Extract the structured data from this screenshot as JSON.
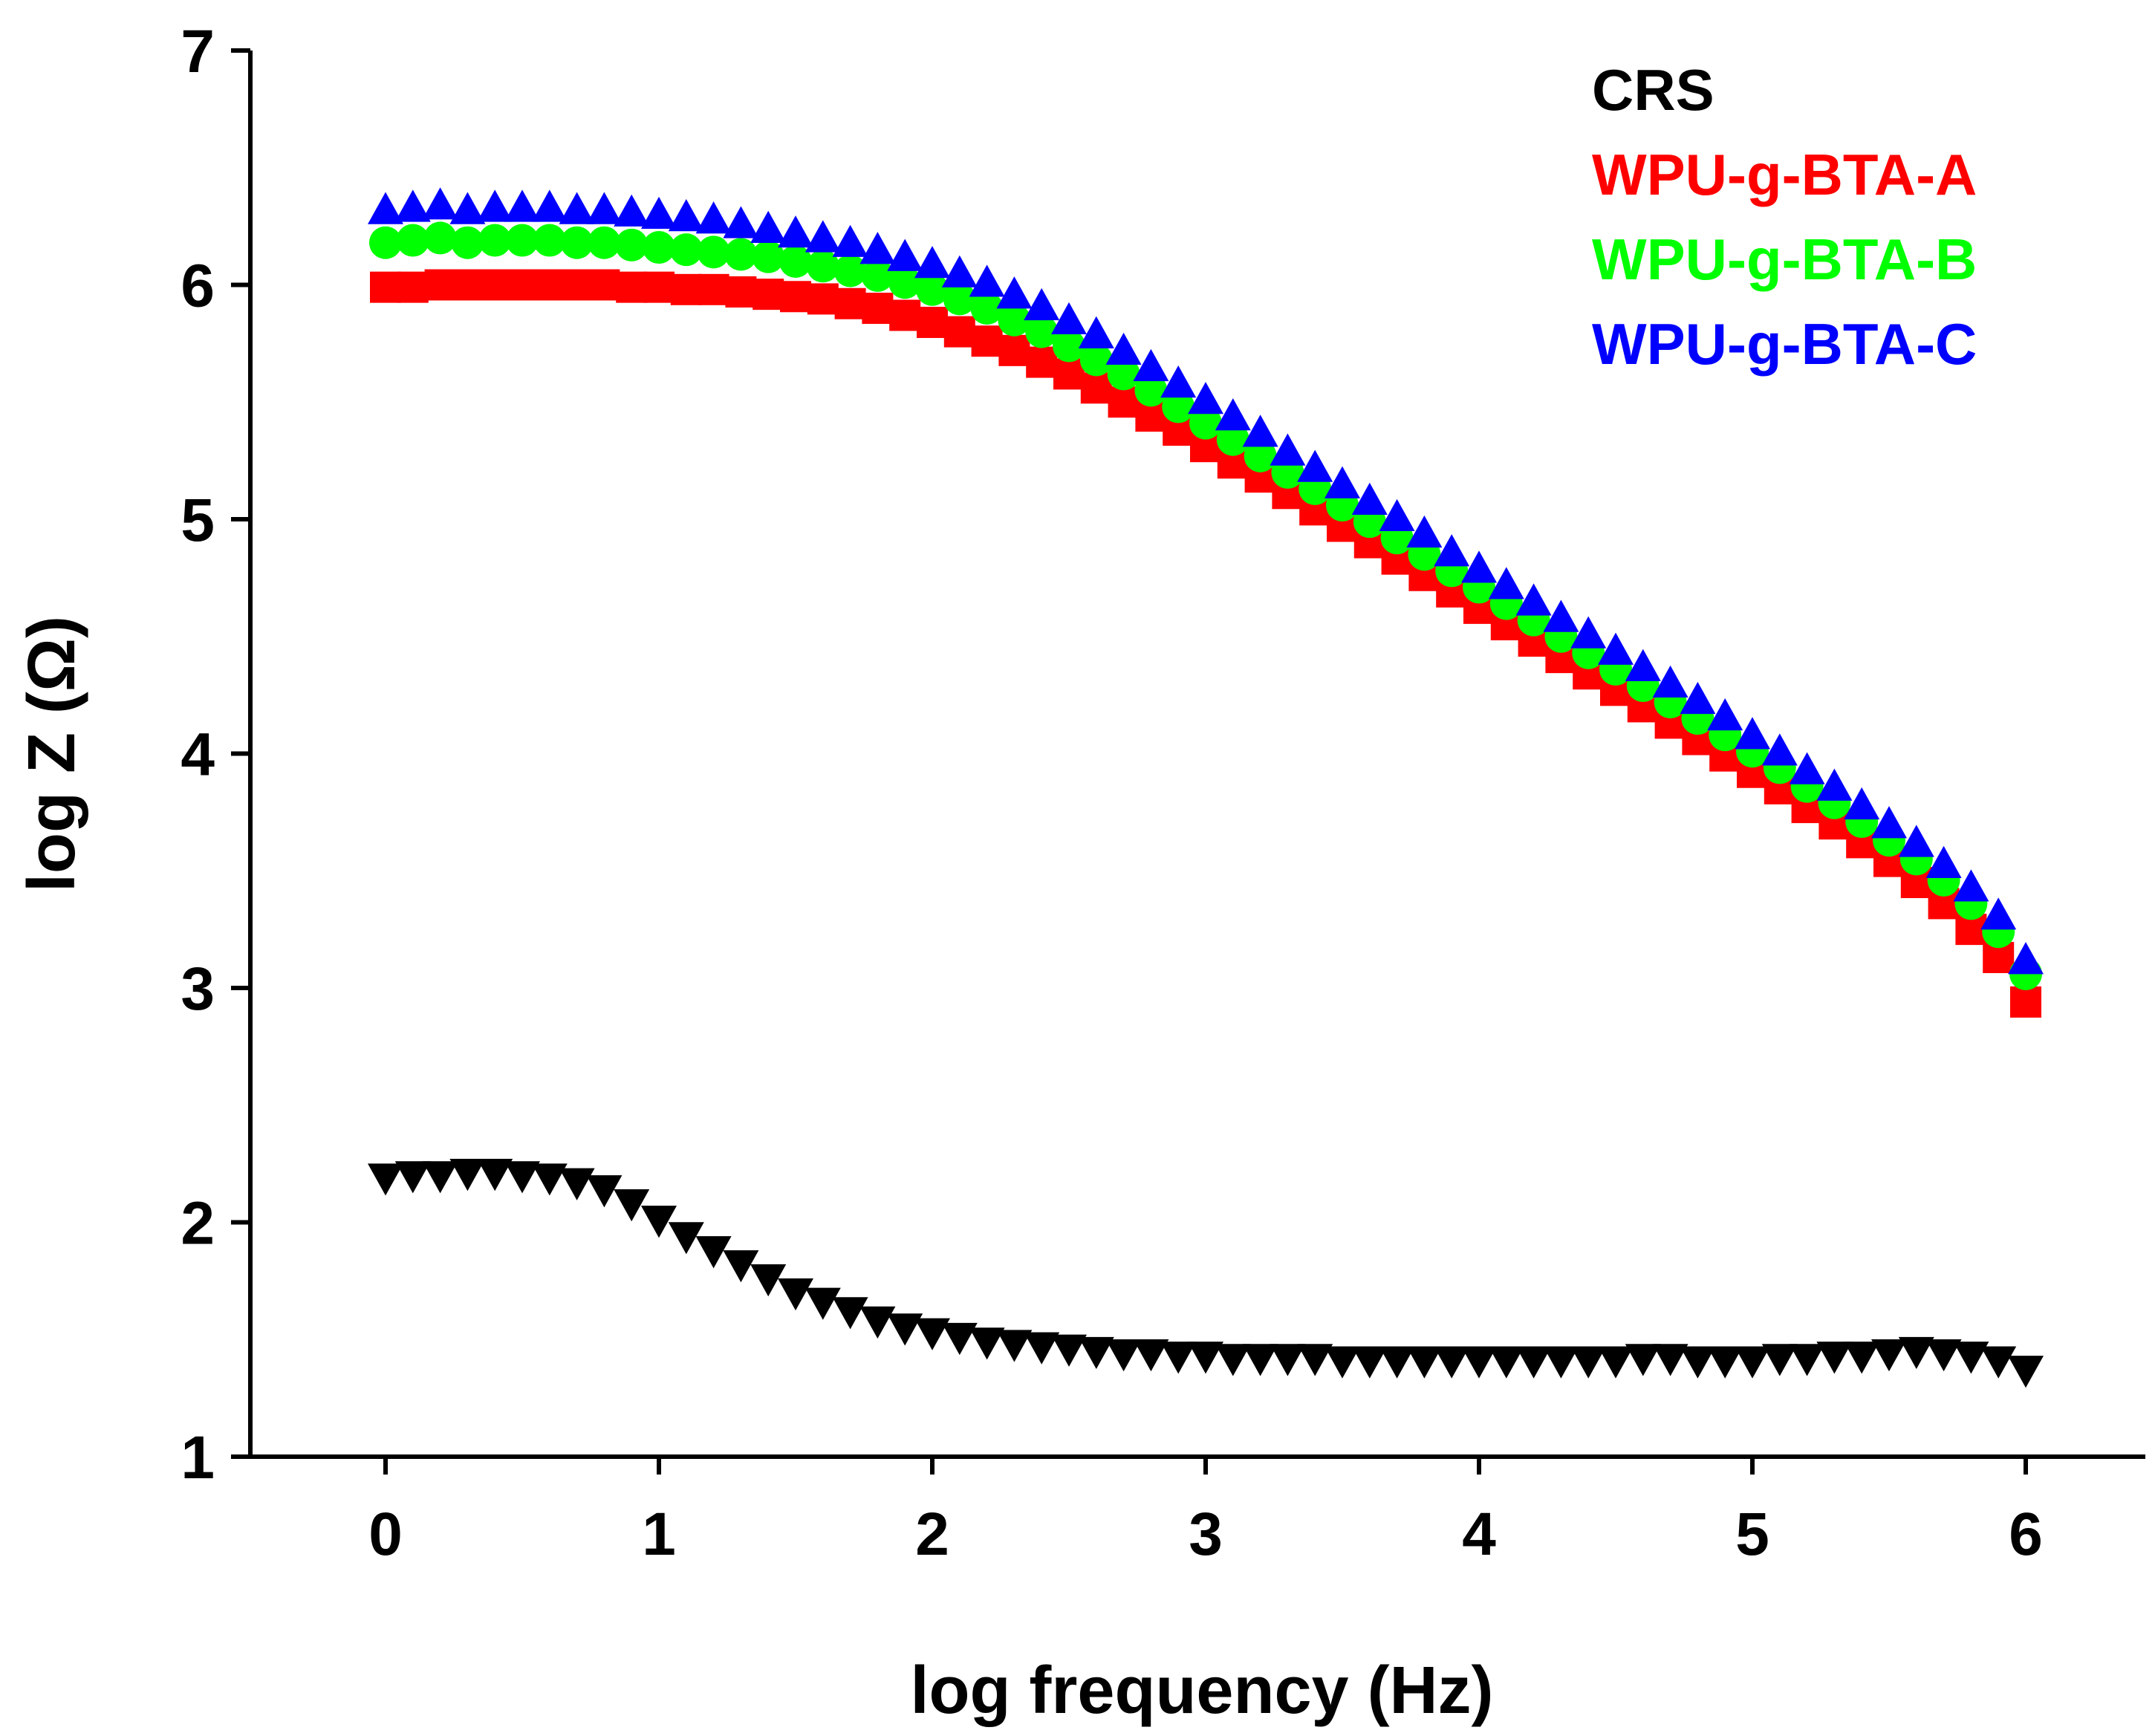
{
  "chart_data": {
    "type": "scatter",
    "title": "",
    "xlabel": "log frequency (Hz)",
    "ylabel": "log Z (Ω)",
    "xlim": [
      -0.5,
      6.45
    ],
    "ylim": [
      1,
      7
    ],
    "xticks": [
      0,
      1,
      2,
      3,
      4,
      5,
      6
    ],
    "yticks": [
      1,
      2,
      3,
      4,
      5,
      6,
      7
    ],
    "xtick_labels": [
      "0",
      "1",
      "2",
      "3",
      "4",
      "5",
      "6"
    ],
    "ytick_labels": [
      "1",
      "2",
      "3",
      "4",
      "5",
      "6",
      "7"
    ],
    "grid": false,
    "legend_position": "top-right",
    "series": [
      {
        "name": "CRS",
        "color": "#000000",
        "marker": "triangle-down",
        "x": [
          0.0,
          0.1,
          0.2,
          0.3,
          0.4,
          0.5,
          0.6,
          0.7,
          0.8,
          0.9,
          1.0,
          1.1,
          1.2,
          1.3,
          1.4,
          1.5,
          1.6,
          1.7,
          1.8,
          1.9,
          2.0,
          2.1,
          2.2,
          2.3,
          2.4,
          2.5,
          2.6,
          2.7,
          2.8,
          2.9,
          3.0,
          3.1,
          3.2,
          3.3,
          3.4,
          3.5,
          3.6,
          3.7,
          3.8,
          3.9,
          4.0,
          4.1,
          4.2,
          4.3,
          4.4,
          4.5,
          4.6,
          4.7,
          4.8,
          4.9,
          5.0,
          5.1,
          5.2,
          5.3,
          5.4,
          5.5,
          5.6,
          5.7,
          5.8,
          5.9,
          6.0
        ],
        "y": [
          2.19,
          2.2,
          2.2,
          2.21,
          2.21,
          2.2,
          2.19,
          2.17,
          2.14,
          2.08,
          2.01,
          1.94,
          1.88,
          1.82,
          1.76,
          1.7,
          1.66,
          1.62,
          1.58,
          1.55,
          1.53,
          1.51,
          1.49,
          1.48,
          1.47,
          1.46,
          1.45,
          1.44,
          1.44,
          1.43,
          1.43,
          1.42,
          1.42,
          1.42,
          1.42,
          1.41,
          1.41,
          1.41,
          1.41,
          1.41,
          1.41,
          1.41,
          1.41,
          1.41,
          1.41,
          1.41,
          1.42,
          1.42,
          1.41,
          1.41,
          1.41,
          1.42,
          1.42,
          1.43,
          1.43,
          1.44,
          1.45,
          1.44,
          1.43,
          1.41,
          1.37
        ]
      },
      {
        "name": "WPU-g-BTA-A",
        "color": "#ff0000",
        "marker": "square",
        "x": [
          0.0,
          0.1,
          0.2,
          0.3,
          0.4,
          0.5,
          0.6,
          0.7,
          0.8,
          0.9,
          1.0,
          1.1,
          1.2,
          1.3,
          1.4,
          1.5,
          1.6,
          1.7,
          1.8,
          1.9,
          2.0,
          2.1,
          2.2,
          2.3,
          2.4,
          2.5,
          2.6,
          2.7,
          2.8,
          2.9,
          3.0,
          3.1,
          3.2,
          3.3,
          3.4,
          3.5,
          3.6,
          3.7,
          3.8,
          3.9,
          4.0,
          4.1,
          4.2,
          4.3,
          4.4,
          4.5,
          4.6,
          4.7,
          4.8,
          4.9,
          5.0,
          5.1,
          5.2,
          5.3,
          5.4,
          5.5,
          5.6,
          5.7,
          5.8,
          5.9,
          6.0
        ],
        "y": [
          5.99,
          5.99,
          6.0,
          6.0,
          6.0,
          6.0,
          6.0,
          6.0,
          6.0,
          5.99,
          5.99,
          5.98,
          5.98,
          5.97,
          5.96,
          5.95,
          5.94,
          5.92,
          5.9,
          5.87,
          5.84,
          5.8,
          5.76,
          5.72,
          5.67,
          5.62,
          5.56,
          5.5,
          5.44,
          5.38,
          5.31,
          5.24,
          5.18,
          5.11,
          5.04,
          4.97,
          4.9,
          4.83,
          4.76,
          4.69,
          4.62,
          4.55,
          4.48,
          4.41,
          4.34,
          4.27,
          4.2,
          4.13,
          4.06,
          3.99,
          3.92,
          3.85,
          3.77,
          3.7,
          3.62,
          3.54,
          3.45,
          3.36,
          3.25,
          3.13,
          2.94
        ]
      },
      {
        "name": "WPU-g-BTA-B",
        "color": "#00ff00",
        "marker": "circle",
        "x": [
          0.0,
          0.1,
          0.2,
          0.3,
          0.4,
          0.5,
          0.6,
          0.7,
          0.8,
          0.9,
          1.0,
          1.1,
          1.2,
          1.3,
          1.4,
          1.5,
          1.6,
          1.7,
          1.8,
          1.9,
          2.0,
          2.1,
          2.2,
          2.3,
          2.4,
          2.5,
          2.6,
          2.7,
          2.8,
          2.9,
          3.0,
          3.1,
          3.2,
          3.3,
          3.4,
          3.5,
          3.6,
          3.7,
          3.8,
          3.9,
          4.0,
          4.1,
          4.2,
          4.3,
          4.4,
          4.5,
          4.6,
          4.7,
          4.8,
          4.9,
          5.0,
          5.1,
          5.2,
          5.3,
          5.4,
          5.5,
          5.6,
          5.7,
          5.8,
          5.9,
          6.0
        ],
        "y": [
          6.18,
          6.19,
          6.2,
          6.18,
          6.19,
          6.19,
          6.19,
          6.18,
          6.18,
          6.17,
          6.16,
          6.15,
          6.14,
          6.13,
          6.12,
          6.1,
          6.08,
          6.06,
          6.04,
          6.01,
          5.98,
          5.94,
          5.9,
          5.85,
          5.8,
          5.74,
          5.68,
          5.62,
          5.55,
          5.48,
          5.41,
          5.34,
          5.27,
          5.2,
          5.13,
          5.06,
          4.99,
          4.92,
          4.85,
          4.78,
          4.71,
          4.64,
          4.57,
          4.5,
          4.43,
          4.36,
          4.29,
          4.22,
          4.15,
          4.08,
          4.01,
          3.94,
          3.86,
          3.79,
          3.71,
          3.63,
          3.55,
          3.46,
          3.36,
          3.24,
          3.06
        ]
      },
      {
        "name": "WPU-g-BTA-C",
        "color": "#0000ff",
        "marker": "triangle-up",
        "x": [
          0.0,
          0.1,
          0.2,
          0.3,
          0.4,
          0.5,
          0.6,
          0.7,
          0.8,
          0.9,
          1.0,
          1.1,
          1.2,
          1.3,
          1.4,
          1.5,
          1.6,
          1.7,
          1.8,
          1.9,
          2.0,
          2.1,
          2.2,
          2.3,
          2.4,
          2.5,
          2.6,
          2.7,
          2.8,
          2.9,
          3.0,
          3.1,
          3.2,
          3.3,
          3.4,
          3.5,
          3.6,
          3.7,
          3.8,
          3.9,
          4.0,
          4.1,
          4.2,
          4.3,
          4.4,
          4.5,
          4.6,
          4.7,
          4.8,
          4.9,
          5.0,
          5.1,
          5.2,
          5.3,
          5.4,
          5.5,
          5.6,
          5.7,
          5.8,
          5.9,
          6.0
        ],
        "y": [
          6.32,
          6.33,
          6.34,
          6.32,
          6.33,
          6.33,
          6.33,
          6.32,
          6.32,
          6.31,
          6.3,
          6.29,
          6.28,
          6.26,
          6.24,
          6.22,
          6.2,
          6.18,
          6.15,
          6.12,
          6.09,
          6.05,
          6.01,
          5.96,
          5.91,
          5.85,
          5.79,
          5.72,
          5.65,
          5.58,
          5.51,
          5.44,
          5.37,
          5.29,
          5.22,
          5.15,
          5.08,
          5.01,
          4.94,
          4.86,
          4.79,
          4.72,
          4.65,
          4.58,
          4.51,
          4.44,
          4.37,
          4.3,
          4.23,
          4.16,
          4.08,
          4.01,
          3.93,
          3.86,
          3.78,
          3.7,
          3.62,
          3.53,
          3.43,
          3.31,
          3.12
        ]
      }
    ]
  }
}
